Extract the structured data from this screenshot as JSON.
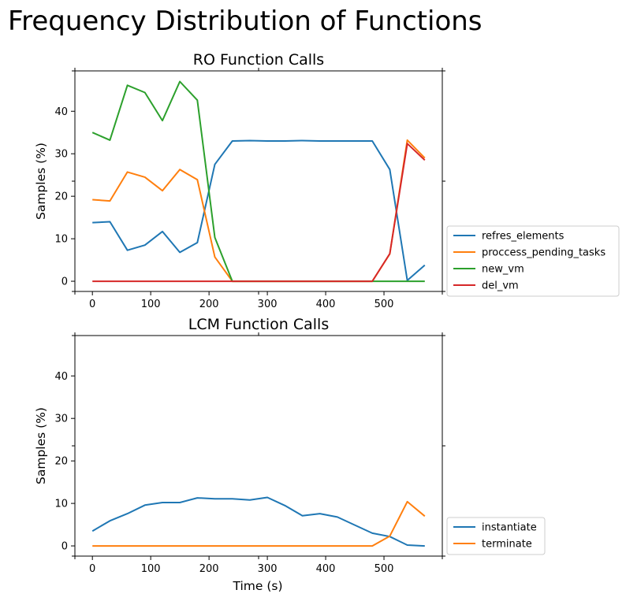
{
  "suptitle": "Frequency Distribution of Functions",
  "colors": {
    "blue": "#1f77b4",
    "orange": "#ff7f0e",
    "green": "#2ca02c",
    "red": "#d62728"
  },
  "chart_data": [
    {
      "type": "line",
      "title": "RO Function Calls",
      "xlabel": "",
      "ylabel": "Samples (%)",
      "xlim": [
        -30,
        600
      ],
      "ylim": [
        -2.4,
        49.5
      ],
      "xticks": [
        0,
        100,
        200,
        300,
        400,
        500
      ],
      "yticks": [
        0,
        10,
        20,
        30,
        40
      ],
      "legend": "outside-right",
      "x": [
        0,
        30,
        60,
        90,
        120,
        150,
        180,
        210,
        240,
        270,
        300,
        330,
        360,
        390,
        420,
        450,
        480,
        510,
        540,
        570
      ],
      "series": [
        {
          "name": "refres_elements",
          "color": "#1f77b4",
          "values": [
            13.8,
            14.0,
            7.3,
            8.5,
            11.7,
            6.8,
            9.1,
            27.5,
            33.0,
            33.1,
            33.0,
            33.0,
            33.1,
            33.0,
            33.0,
            33.0,
            33.0,
            26.3,
            0.2,
            3.8
          ]
        },
        {
          "name": "proccess_pending_tasks",
          "color": "#ff7f0e",
          "values": [
            19.2,
            18.9,
            25.7,
            24.5,
            21.3,
            26.3,
            23.9,
            5.7,
            0.0,
            0.0,
            0.0,
            0.0,
            0.0,
            0.0,
            0.0,
            0.0,
            0.0,
            6.4,
            33.2,
            29.0
          ]
        },
        {
          "name": "new_vm",
          "color": "#2ca02c",
          "values": [
            35.0,
            33.2,
            46.1,
            44.4,
            37.8,
            47.0,
            42.6,
            10.3,
            0.0,
            0.0,
            0.0,
            0.0,
            0.0,
            0.0,
            0.0,
            0.0,
            0.0,
            0.0,
            0.0,
            0.0
          ]
        },
        {
          "name": "del_vm",
          "color": "#d62728",
          "values": [
            0.0,
            0.0,
            0.0,
            0.0,
            0.0,
            0.0,
            0.0,
            0.0,
            0.0,
            0.0,
            0.0,
            0.0,
            0.0,
            0.0,
            0.0,
            0.0,
            0.0,
            6.5,
            32.4,
            28.5
          ]
        }
      ]
    },
    {
      "type": "line",
      "title": "LCM Function Calls",
      "xlabel": "Time (s)",
      "ylabel": "Samples (%)",
      "xlim": [
        -30,
        600
      ],
      "ylim": [
        -2.4,
        49.5
      ],
      "xticks": [
        0,
        100,
        200,
        300,
        400,
        500
      ],
      "yticks": [
        0,
        10,
        20,
        30,
        40
      ],
      "legend": "outside-right",
      "x": [
        0,
        30,
        60,
        90,
        120,
        150,
        180,
        210,
        240,
        270,
        300,
        330,
        360,
        390,
        420,
        450,
        480,
        510,
        540,
        570
      ],
      "series": [
        {
          "name": "instantiate",
          "color": "#1f77b4",
          "values": [
            3.5,
            5.9,
            7.6,
            9.6,
            10.2,
            10.2,
            11.3,
            11.1,
            11.1,
            10.8,
            11.4,
            9.5,
            7.1,
            7.6,
            6.8,
            4.9,
            3.0,
            2.2,
            0.2,
            0.0
          ]
        },
        {
          "name": "terminate",
          "color": "#ff7f0e",
          "values": [
            0.0,
            0.0,
            0.0,
            0.0,
            0.0,
            0.0,
            0.0,
            0.0,
            0.0,
            0.0,
            0.0,
            0.0,
            0.0,
            0.0,
            0.0,
            0.0,
            0.0,
            2.3,
            10.4,
            7.0
          ]
        }
      ]
    }
  ]
}
